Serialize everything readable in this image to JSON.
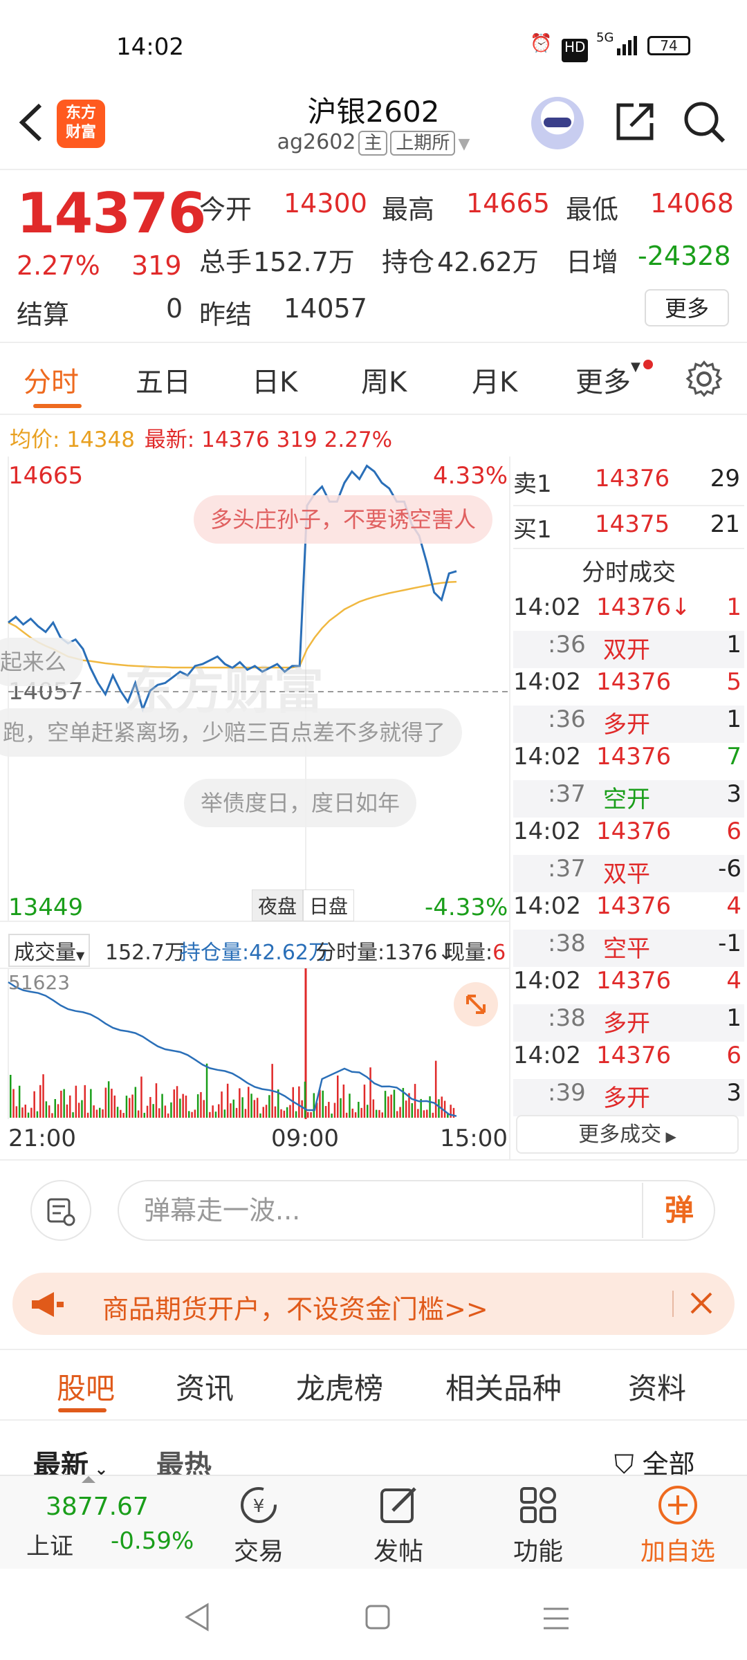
{
  "status_bar": {
    "time": "14:02",
    "battery": "74",
    "network": "5G",
    "hd": "HD"
  },
  "header": {
    "logo_line1": "东方",
    "logo_line2": "财富",
    "title": "沪银2602",
    "code": "ag2602",
    "tag_main": "主",
    "tag_exchange": "上期所"
  },
  "quote": {
    "last": "14376",
    "change_pct": "2.27%",
    "change": "319",
    "open_label": "今开",
    "open": "14300",
    "high_label": "最高",
    "high": "14665",
    "low_label": "最低",
    "low": "14068",
    "volume_label": "总手",
    "volume": "152.7万",
    "oi_label": "持仓",
    "oi": "42.62万",
    "daily_inc_label": "日增",
    "daily_inc": "-24328",
    "settle_label": "结算",
    "settle": "0",
    "prev_settle_label": "昨结",
    "prev_settle": "14057",
    "more_label": "更多"
  },
  "tabs": [
    "分时",
    "五日",
    "日K",
    "周K",
    "月K",
    "更多"
  ],
  "avg_bar": {
    "avg_label": "均价:",
    "avg": "14348",
    "latest_label": "最新:",
    "latest": "14376",
    "chg": "319",
    "pct": "2.27%"
  },
  "chart": {
    "high_label": "14665",
    "high_pct": "4.33%",
    "prev_settle_label": "14057",
    "low_label": "13449",
    "low_pct": "-4.33%",
    "session_night": "夜盘",
    "session_day": "日盘",
    "vol_selector": "成交量",
    "vol_total": "152.7万",
    "oi_text": "持仓量:42.62万",
    "tick_vol": "分时量:1376↓",
    "cur_vol": "现量:6",
    "vol_max": "51623",
    "time_labels": [
      "21:00",
      "09:00",
      "15:00"
    ]
  },
  "chart_data": {
    "type": "line",
    "ylim": [
      13449,
      14665
    ],
    "series": [
      {
        "name": "最新",
        "values": [
          14240,
          14255,
          14235,
          14250,
          14230,
          14215,
          14240,
          14200,
          14185,
          14195,
          14170,
          14120,
          14080,
          14050,
          14100,
          14060,
          14030,
          14080,
          14010,
          14060,
          14075,
          14080,
          14095,
          14110,
          14100,
          14125,
          14130,
          14140,
          14150,
          14130,
          14120,
          14135,
          14115,
          14125,
          14110,
          14120,
          14130,
          14110,
          14125,
          14125,
          14550,
          14580,
          14600,
          14560,
          14560,
          14610,
          14640,
          14620,
          14655,
          14640,
          14610,
          14595,
          14560,
          14560,
          14500,
          14470,
          14400,
          14320,
          14300,
          14370,
          14376
        ]
      },
      {
        "name": "均价",
        "values": [
          14240,
          14230,
          14215,
          14200,
          14188,
          14178,
          14170,
          14160,
          14150,
          14145,
          14140,
          14138,
          14135,
          14132,
          14130,
          14128,
          14126,
          14125,
          14124,
          14123,
          14122,
          14122,
          14121,
          14121,
          14121,
          14121,
          14121,
          14121,
          14121,
          14121,
          14121,
          14121,
          14121,
          14121,
          14121,
          14121,
          14121,
          14121,
          14121,
          14125,
          14170,
          14200,
          14225,
          14245,
          14260,
          14275,
          14285,
          14295,
          14302,
          14308,
          14313,
          14318,
          14322,
          14326,
          14330,
          14334,
          14338,
          14342,
          14345,
          14347,
          14348
        ]
      }
    ]
  },
  "danmaku": [
    "多头庄孙子，不要诱空害人",
    "起来么",
    "跑，空单赶紧离场，少赔三百点差不多就得了",
    "举债度日，度日如年"
  ],
  "order_book": {
    "asks": [
      {
        "label": "卖1",
        "price": "14376",
        "vol": "29"
      }
    ],
    "bids": [
      {
        "label": "买1",
        "price": "14375",
        "vol": "21"
      }
    ]
  },
  "trades_title": "分时成交",
  "trades": [
    {
      "time": "14:02",
      "price": "14376↓",
      "vol": "1",
      "sub": ":36",
      "kind": "双开",
      "kvol": "1",
      "pc": "red",
      "vc": "red",
      "kc": "red"
    },
    {
      "time": "14:02",
      "price": "14376",
      "vol": "5",
      "sub": ":36",
      "kind": "多开",
      "kvol": "1",
      "pc": "red",
      "vc": "red",
      "kc": "red"
    },
    {
      "time": "14:02",
      "price": "14376",
      "vol": "7",
      "sub": ":37",
      "kind": "空开",
      "kvol": "3",
      "pc": "red",
      "vc": "green",
      "kc": "green"
    },
    {
      "time": "14:02",
      "price": "14376",
      "vol": "6",
      "sub": ":37",
      "kind": "双平",
      "kvol": "-6",
      "pc": "red",
      "vc": "red",
      "kc": "red"
    },
    {
      "time": "14:02",
      "price": "14376",
      "vol": "4",
      "sub": ":38",
      "kind": "空平",
      "kvol": "-1",
      "pc": "red",
      "vc": "red",
      "kc": "red"
    },
    {
      "time": "14:02",
      "price": "14376",
      "vol": "4",
      "sub": ":38",
      "kind": "多开",
      "kvol": "1",
      "pc": "red",
      "vc": "red",
      "kc": "red"
    },
    {
      "time": "14:02",
      "price": "14376",
      "vol": "6",
      "sub": ":39",
      "kind": "多开",
      "kvol": "3",
      "pc": "red",
      "vc": "red",
      "kc": "red"
    }
  ],
  "more_trades": "更多成交",
  "comment": {
    "placeholder": "弹幕走一波...",
    "button": "弹"
  },
  "promo": {
    "text": "商品期货开户，不设资金门槛>>"
  },
  "forum_tabs": [
    "股吧",
    "资讯",
    "龙虎榜",
    "相关品种",
    "资料"
  ],
  "sort": {
    "latest": "最新",
    "hot": "最热",
    "filter": "全部"
  },
  "bottom_bar": {
    "index_value": "3877.67",
    "index_name": "上证",
    "index_change": "-0.59%",
    "items": [
      "交易",
      "发帖",
      "功能",
      "加自选"
    ]
  },
  "colors": {
    "up": "#e02a2a",
    "down": "#1a9e1a",
    "accent": "#ee6a1f",
    "price_line": "#2a6fb8",
    "avg_line": "#f0b840"
  }
}
